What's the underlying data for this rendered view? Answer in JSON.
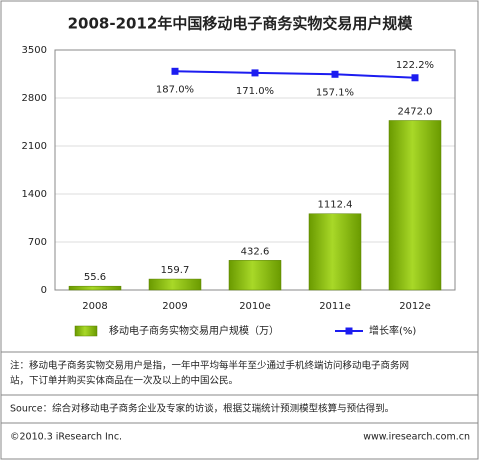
{
  "chart_data": {
    "type": "bar",
    "title": "2008-2012年中国移动电子商务实物交易用户规模",
    "categories": [
      "2008",
      "2009",
      "2010e",
      "2011e",
      "2012e"
    ],
    "series": [
      {
        "name": "移动电子商务实物交易用户规模（万）",
        "type": "bar",
        "color": "#8cbf10",
        "values": [
          55.6,
          159.7,
          432.6,
          1112.4,
          2472.0
        ],
        "value_labels": [
          "55.6",
          "159.7",
          "432.6",
          "1112.4",
          "2472.0"
        ]
      },
      {
        "name": "增长率(%)",
        "type": "line",
        "axis": "y2",
        "color": "#1c1cf0",
        "values": [
          null,
          187.0,
          171.0,
          157.1,
          122.2
        ],
        "value_labels": [
          null,
          "187.0%",
          "171.0%",
          "157.1%",
          "122.2%"
        ]
      }
    ],
    "ylim": [
      0,
      3500
    ],
    "yticks": [
      0,
      700,
      1400,
      2100,
      2800,
      3500
    ],
    "y2lim": [
      -2000,
      400
    ],
    "grid": true
  },
  "notes": {
    "note": [
      "注：移动电子商务实物交易用户是指，一年中平均每半年至少通过手机终端访问移动电子商务网",
      "站，下订单并购买实体商品在一次及以上的中国公民。"
    ],
    "source": "Source：综合对移动电子商务企业及专家的访谈，根据艾瑞统计预测模型核算与预估得到。",
    "copyright": "©2010.3 iResearch Inc.",
    "website": "www.iresearch.com.cn"
  }
}
